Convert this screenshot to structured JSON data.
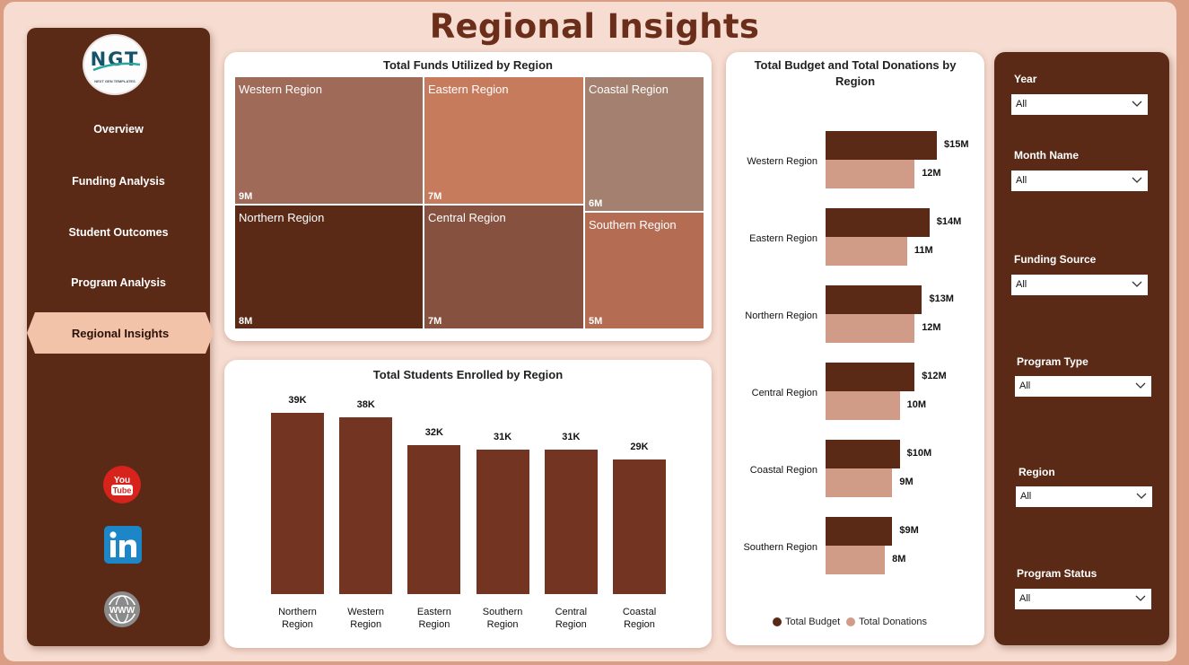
{
  "page": {
    "title": "Regional Insights"
  },
  "logo": {
    "mark": "NGT",
    "tagline": "NEXT GEN TEMPLATES"
  },
  "nav": {
    "items": [
      {
        "label": "Overview",
        "active": false
      },
      {
        "label": "Funding Analysis",
        "active": false
      },
      {
        "label": "Student Outcomes",
        "active": false
      },
      {
        "label": "Program Analysis",
        "active": false
      },
      {
        "label": "Regional Insights",
        "active": true
      }
    ],
    "social_icons": [
      "youtube-icon",
      "linkedin-icon",
      "globe-icon"
    ]
  },
  "colors": {
    "dark_brown": "#5a2a17",
    "bar_brown": "#733422",
    "light_brown": "#d19c87",
    "accent_title": "#6b2e1a",
    "background": "#f6dcd1"
  },
  "funds_chart": {
    "title": "Total Funds Utilized by Region",
    "chart_data": {
      "type": "treemap",
      "title": "Total Funds Utilized by Region",
      "categories": [
        "Western Region",
        "Northern Region",
        "Eastern Region",
        "Central Region",
        "Coastal Region",
        "Southern Region"
      ],
      "labels": [
        "9M",
        "8M",
        "7M",
        "7M",
        "6M",
        "5M"
      ],
      "colors": [
        "#a06a58",
        "#5a2a17",
        "#c77b5d",
        "#87513f",
        "#a3806f",
        "#b46c52"
      ]
    }
  },
  "students_chart": {
    "title": "Total Students Enrolled by Region",
    "chart_data": {
      "type": "bar",
      "title": "Total Students Enrolled by Region",
      "categories": [
        "Northern Region",
        "Western Region",
        "Eastern Region",
        "Southern Region",
        "Central Region",
        "Coastal Region"
      ],
      "category_lines": [
        [
          "Northern",
          "Region"
        ],
        [
          "Western",
          "Region"
        ],
        [
          "Eastern",
          "Region"
        ],
        [
          "Southern",
          "Region"
        ],
        [
          "Central",
          "Region"
        ],
        [
          "Coastal",
          "Region"
        ]
      ],
      "values": [
        39000,
        38000,
        32000,
        31000,
        31000,
        29000
      ],
      "data_labels": [
        "39K",
        "38K",
        "32K",
        "31K",
        "31K",
        "29K"
      ],
      "color": "#733422"
    }
  },
  "budget_chart": {
    "title": "Total Budget and Total Donations by Region",
    "chart_data": {
      "type": "bar",
      "orientation": "horizontal",
      "title": "Total Budget and Total Donations by Region",
      "categories": [
        "Western Region",
        "Eastern Region",
        "Northern Region",
        "Central Region",
        "Coastal Region",
        "Southern Region"
      ],
      "series": [
        {
          "name": "Total Budget",
          "values": [
            15,
            14,
            13,
            12,
            10,
            9
          ],
          "labels": [
            "$15M",
            "$14M",
            "$13M",
            "$12M",
            "$10M",
            "$9M"
          ],
          "color": "#5a2a17"
        },
        {
          "name": "Total Donations",
          "values": [
            12,
            11,
            12,
            10,
            9,
            8
          ],
          "labels": [
            "12M",
            "11M",
            "12M",
            "10M",
            "9M",
            "8M"
          ],
          "color": "#d19c87"
        }
      ],
      "legend": "bottom"
    }
  },
  "filters": [
    {
      "label": "Year",
      "value": "All"
    },
    {
      "label": "Month Name",
      "value": "All"
    },
    {
      "label": "Funding Source",
      "value": "All"
    },
    {
      "label": "Program Type",
      "value": "All"
    },
    {
      "label": "Region",
      "value": "All"
    },
    {
      "label": "Program Status",
      "value": "All"
    }
  ]
}
